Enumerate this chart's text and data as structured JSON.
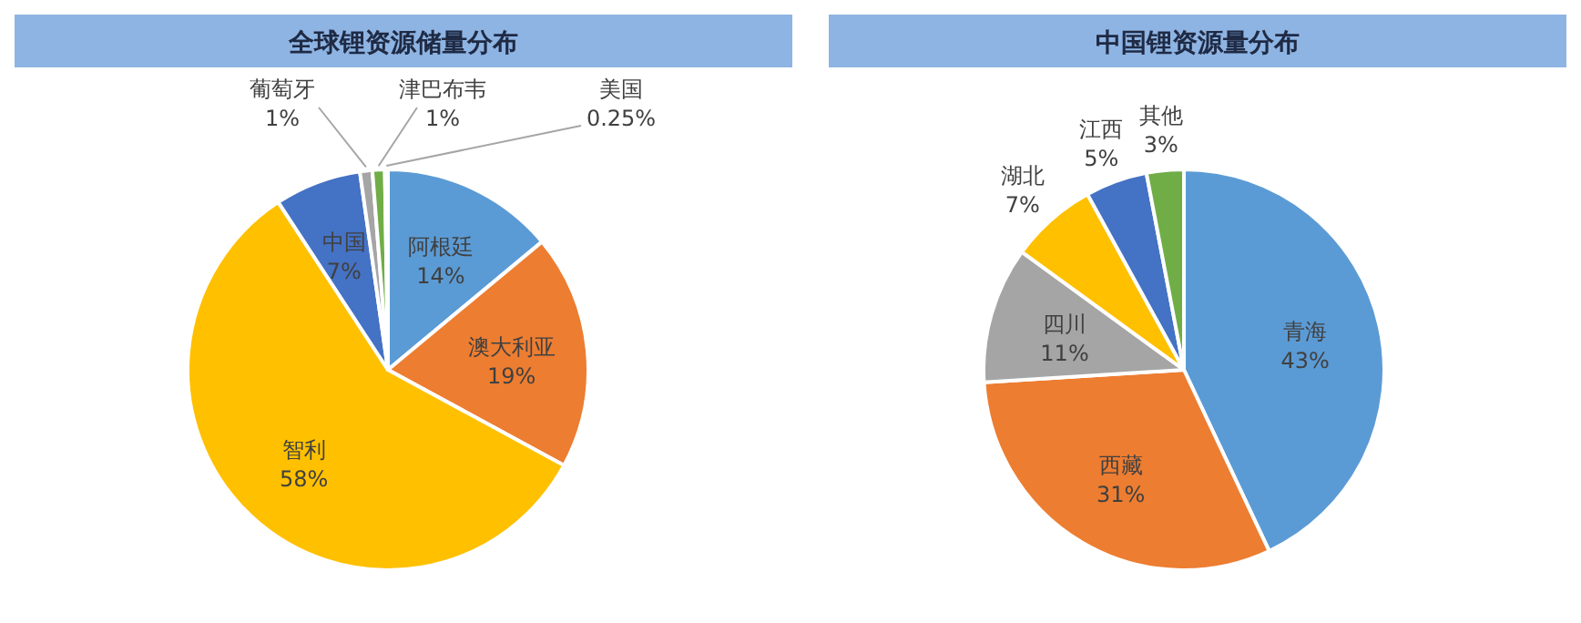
{
  "chart_data": [
    {
      "type": "pie",
      "title": "全球锂资源储量分布",
      "categories": [
        "阿根廷",
        "澳大利亚",
        "智利",
        "中国",
        "葡萄牙",
        "津巴布韦",
        "美国"
      ],
      "values": [
        14,
        19,
        58,
        7,
        1,
        1,
        0.25
      ],
      "value_labels": [
        "14%",
        "19%",
        "58%",
        "7%",
        "1%",
        "1%",
        "0.25%"
      ],
      "colors": [
        "#5b9bd5",
        "#ed7d31",
        "#ffc000",
        "#4472c4",
        "#a5a5a5",
        "#70ad47",
        "#264478"
      ],
      "legend": false
    },
    {
      "type": "pie",
      "title": "中国锂资源量分布",
      "categories": [
        "青海",
        "西藏",
        "四川",
        "湖北",
        "江西",
        "其他"
      ],
      "values": [
        43,
        31,
        11,
        7,
        5,
        3
      ],
      "value_labels": [
        "43%",
        "31%",
        "11%",
        "7%",
        "5%",
        "3%"
      ],
      "colors": [
        "#5b9bd5",
        "#ed7d31",
        "#a5a5a5",
        "#ffc000",
        "#4472c4",
        "#70ad47"
      ],
      "legend": false
    }
  ]
}
